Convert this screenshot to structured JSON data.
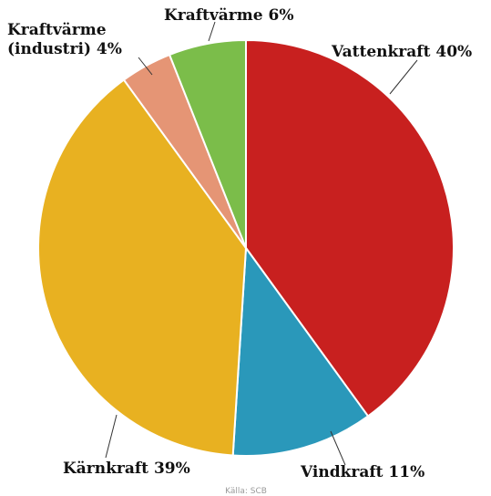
{
  "chart_data": {
    "type": "pie",
    "title": "",
    "source": "Källa: SCB",
    "slices": [
      {
        "label": "Vattenkraft 40%",
        "value": 40,
        "color": "#c8201f"
      },
      {
        "label": "Vindkraft 11%",
        "value": 11,
        "color": "#2a98ba"
      },
      {
        "label": "Kärnkraft 39%",
        "value": 39,
        "color": "#e8b121"
      },
      {
        "label_lines": [
          "Kraftvärme",
          "(industri) 4%"
        ],
        "value": 4,
        "color": "#e59575"
      },
      {
        "label": "Kraftvärme 6%",
        "value": 6,
        "color": "#7bbd4a"
      }
    ]
  }
}
